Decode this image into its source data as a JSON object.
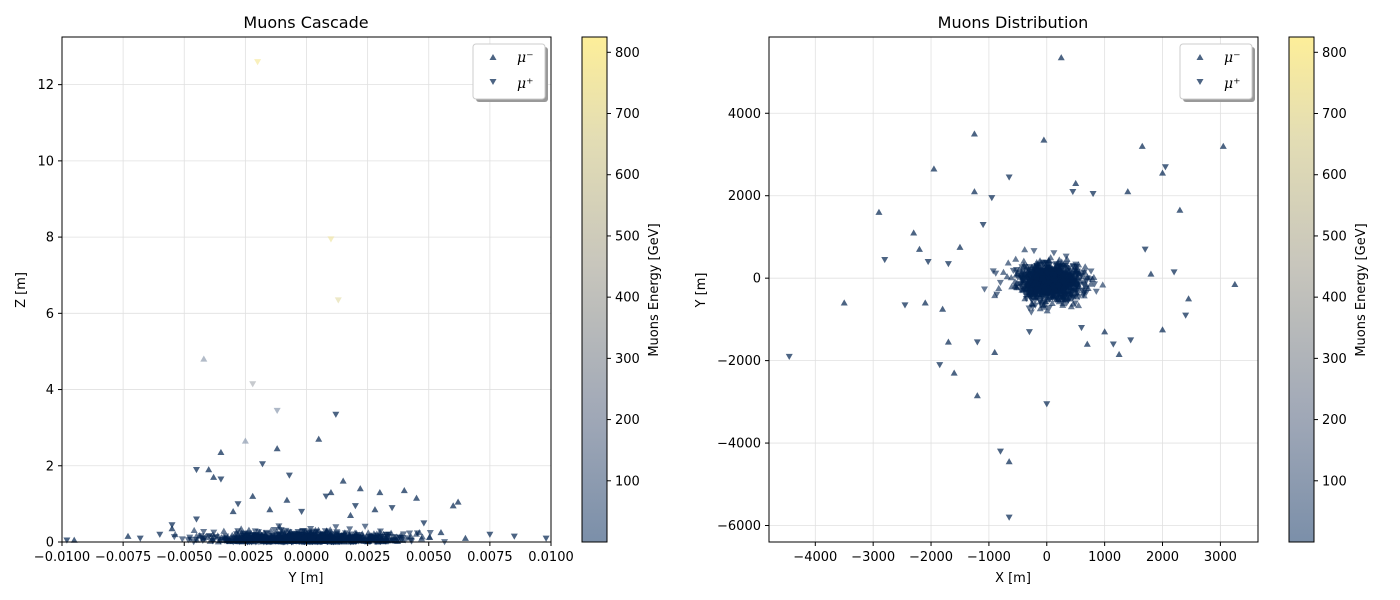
{
  "colors": {
    "marker_low": "#00224e",
    "colormap_stops": [
      "#7b8fa9",
      "#a0a8b7",
      "#c8c6bc",
      "#e3ddb4",
      "#fdee99"
    ],
    "grid": "#e0e0e0"
  },
  "icons": {
    "mu_minus_marker": "triangle-up-icon",
    "mu_plus_marker": "triangle-down-icon"
  },
  "colorbar": {
    "label": "Muons Energy [GeV]",
    "range": [
      0,
      825
    ],
    "ticks": [
      100,
      200,
      300,
      400,
      500,
      600,
      700,
      800
    ],
    "tick_labels": [
      "100",
      "200",
      "300",
      "400",
      "500",
      "600",
      "700",
      "800"
    ]
  },
  "chart_data": [
    {
      "type": "scatter",
      "title": "Muons Cascade",
      "xlabel": "Y [m]",
      "ylabel": "Z [m]",
      "xlim": [
        -0.01,
        0.01
      ],
      "ylim": [
        0,
        13.25
      ],
      "xticks": [
        -0.01,
        -0.0075,
        -0.005,
        -0.0025,
        0.0,
        0.0025,
        0.005,
        0.0075,
        0.01
      ],
      "xtick_labels": [
        "−0.0100",
        "−0.0075",
        "−0.0050",
        "−0.0025",
        "0.0000",
        "0.0025",
        "0.0050",
        "0.0075",
        "0.0100"
      ],
      "yticks": [
        0,
        2,
        4,
        6,
        8,
        10,
        12
      ],
      "ytick_labels": [
        "0",
        "2",
        "4",
        "6",
        "8",
        "10",
        "12"
      ],
      "grid": true,
      "legend": "top-right",
      "series": [
        {
          "name": "μ⁻",
          "marker": "triangle-up",
          "points": [
            [
              -0.0042,
              4.8,
              120
            ],
            [
              -0.0025,
              2.65,
              90
            ],
            [
              -0.0035,
              2.35,
              60
            ],
            [
              0.0005,
              2.7,
              40
            ],
            [
              -0.0012,
              2.45,
              40
            ],
            [
              -0.004,
              1.9,
              30
            ],
            [
              -0.0038,
              1.7,
              20
            ],
            [
              0.0015,
              1.6,
              20
            ],
            [
              0.003,
              1.3,
              20
            ],
            [
              0.004,
              1.35,
              20
            ],
            [
              0.0045,
              1.15,
              20
            ],
            [
              -0.0022,
              1.2,
              20
            ],
            [
              -0.0008,
              1.1,
              20
            ],
            [
              0.001,
              1.3,
              20
            ],
            [
              0.0022,
              1.4,
              20
            ],
            [
              -0.0095,
              0.05,
              20
            ],
            [
              -0.0073,
              0.15,
              10
            ],
            [
              0.0062,
              1.05,
              20
            ],
            [
              0.006,
              0.95,
              20
            ],
            [
              0.0028,
              0.85,
              10
            ],
            [
              -0.003,
              0.8,
              10
            ],
            [
              0.0018,
              0.7,
              10
            ],
            [
              -0.0015,
              0.85,
              10
            ],
            [
              0.0065,
              0.1,
              10
            ],
            [
              -0.0055,
              0.35,
              10
            ],
            [
              0.0055,
              0.25,
              10
            ]
          ]
        },
        {
          "name": "μ⁺",
          "marker": "triangle-down",
          "points": [
            [
              -0.002,
              12.6,
              780
            ],
            [
              0.001,
              7.95,
              740
            ],
            [
              0.0013,
              6.35,
              680
            ],
            [
              -0.0022,
              4.15,
              300
            ],
            [
              -0.0012,
              3.45,
              90
            ],
            [
              0.0012,
              3.35,
              60
            ],
            [
              -0.0018,
              2.05,
              40
            ],
            [
              -0.0007,
              1.75,
              30
            ],
            [
              -0.0045,
              1.9,
              20
            ],
            [
              -0.0035,
              1.65,
              20
            ],
            [
              0.0008,
              1.2,
              20
            ],
            [
              -0.0028,
              1.0,
              10
            ],
            [
              0.0035,
              0.9,
              10
            ],
            [
              -0.0045,
              0.6,
              10
            ],
            [
              -0.0055,
              0.45,
              10
            ],
            [
              0.0048,
              0.5,
              10
            ],
            [
              -0.006,
              0.2,
              10
            ],
            [
              0.0075,
              0.2,
              10
            ],
            [
              0.0098,
              0.1,
              10
            ],
            [
              0.0085,
              0.15,
              10
            ],
            [
              -0.0098,
              0.05,
              10
            ],
            [
              -0.0068,
              0.1,
              10
            ],
            [
              0.002,
              0.95,
              10
            ],
            [
              -0.0002,
              0.8,
              10
            ]
          ]
        }
      ]
    },
    {
      "type": "scatter",
      "title": "Muons Distribution",
      "xlabel": "X [m]",
      "ylabel": "Y [m]",
      "xlim": [
        -4800,
        3650
      ],
      "ylim": [
        -6400,
        5850
      ],
      "xticks": [
        -4000,
        -3000,
        -2000,
        -1000,
        0,
        1000,
        2000,
        3000
      ],
      "xtick_labels": [
        "−4000",
        "−3000",
        "−2000",
        "−1000",
        "0",
        "1000",
        "2000",
        "3000"
      ],
      "yticks": [
        -6000,
        -4000,
        -2000,
        0,
        2000,
        4000
      ],
      "ytick_labels": [
        "−6000",
        "−4000",
        "−2000",
        "0",
        "2000",
        "4000"
      ],
      "grid": true,
      "legend": "top-right",
      "series": [
        {
          "name": "μ⁻",
          "marker": "triangle-up",
          "points": [
            [
              250,
              5350
            ],
            [
              -1250,
              3500
            ],
            [
              -50,
              3350
            ],
            [
              1650,
              3200
            ],
            [
              3050,
              3200
            ],
            [
              -1950,
              2650
            ],
            [
              2000,
              2550
            ],
            [
              -2900,
              1600
            ],
            [
              -1250,
              2100
            ],
            [
              500,
              2300
            ],
            [
              1400,
              2100
            ],
            [
              2300,
              1650
            ],
            [
              -3500,
              -600
            ],
            [
              3250,
              -150
            ],
            [
              2450,
              -500
            ],
            [
              2000,
              -1250
            ],
            [
              1250,
              -1850
            ],
            [
              -1200,
              -2850
            ],
            [
              -650,
              -4450
            ],
            [
              -1600,
              -2300
            ],
            [
              -2300,
              1100
            ],
            [
              -2200,
              700
            ],
            [
              -1500,
              750
            ],
            [
              -1800,
              -750
            ],
            [
              -1700,
              -1550
            ],
            [
              -900,
              -1800
            ],
            [
              700,
              -1600
            ],
            [
              1000,
              -1300
            ],
            [
              -2100,
              -600
            ],
            [
              1800,
              100
            ]
          ]
        },
        {
          "name": "μ⁺",
          "marker": "triangle-down",
          "points": [
            [
              -4450,
              -1900
            ],
            [
              -2800,
              450
            ],
            [
              -2450,
              -650
            ],
            [
              -650,
              2450
            ],
            [
              2050,
              2700
            ],
            [
              2200,
              150
            ],
            [
              0,
              -3050
            ],
            [
              -800,
              -4200
            ],
            [
              -650,
              -5800
            ],
            [
              -1850,
              -2100
            ],
            [
              -1200,
              -1550
            ],
            [
              1450,
              -1500
            ],
            [
              1150,
              -1600
            ],
            [
              -2050,
              400
            ],
            [
              -1700,
              350
            ],
            [
              2400,
              -900
            ],
            [
              -1100,
              1300
            ],
            [
              -950,
              1950
            ],
            [
              450,
              2100
            ],
            [
              1700,
              700
            ],
            [
              600,
              -1200
            ],
            [
              -300,
              -1300
            ],
            [
              800,
              2050
            ]
          ]
        }
      ]
    }
  ]
}
